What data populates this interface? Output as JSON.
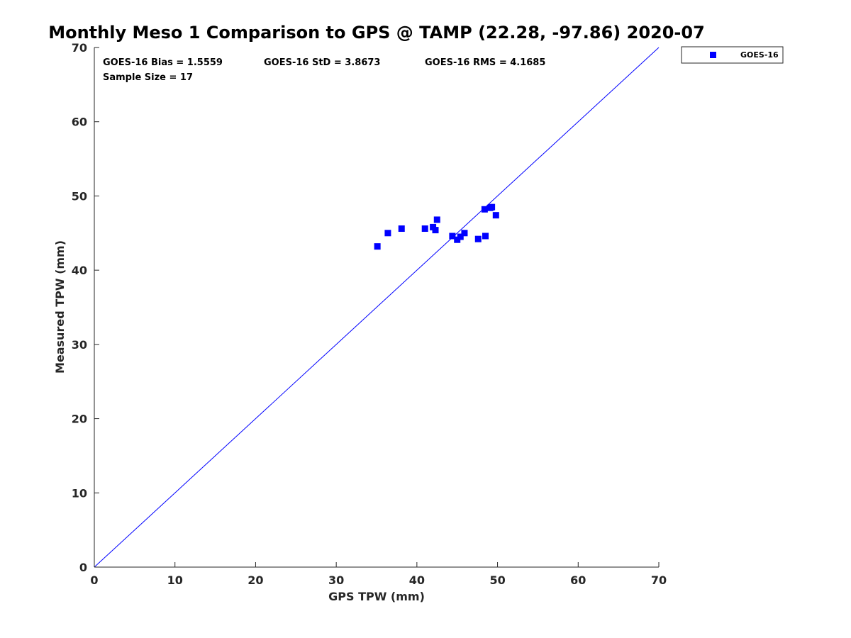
{
  "chart_data": {
    "type": "scatter",
    "title": "Monthly Meso 1 Comparison to GPS @ TAMP (22.28, -97.86) 2020-07",
    "xlabel": "GPS TPW (mm)",
    "ylabel": "Measured TPW (mm)",
    "xlim": [
      0,
      70
    ],
    "ylim": [
      0,
      70
    ],
    "xticks": [
      "0",
      "10",
      "20",
      "30",
      "40",
      "50",
      "60",
      "70"
    ],
    "yticks": [
      "0",
      "10",
      "20",
      "30",
      "40",
      "50",
      "60",
      "70"
    ],
    "grid": false,
    "legend_position": "outside top-right",
    "reference_line": {
      "x": [
        0,
        70
      ],
      "y": [
        0,
        70
      ],
      "color": "#0000ff"
    },
    "stats": {
      "bias": "GOES-16 Bias = 1.5559",
      "std": "GOES-16 StD = 3.8673",
      "rms": "GOES-16 RMS = 4.1685",
      "sample_size": "Sample Size = 17"
    },
    "series": [
      {
        "name": "GOES-16",
        "color": "#0000ff",
        "marker": "square",
        "x": [
          35.1,
          36.4,
          38.1,
          41.0,
          42.0,
          42.3,
          42.5,
          44.4,
          45.0,
          45.4,
          45.9,
          47.6,
          48.4,
          48.5,
          49.1,
          49.3,
          49.8
        ],
        "y": [
          43.2,
          45.0,
          45.6,
          45.6,
          45.8,
          45.4,
          46.8,
          44.6,
          44.1,
          44.5,
          45.0,
          44.2,
          48.2,
          44.6,
          48.4,
          48.5,
          47.4
        ]
      }
    ]
  }
}
